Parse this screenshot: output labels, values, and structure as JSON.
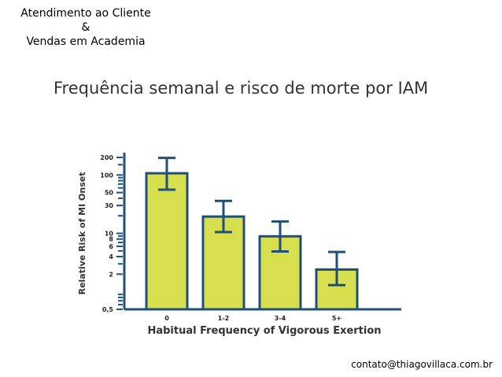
{
  "header": {
    "line1": "Atendimento ao Cliente",
    "line2": "&",
    "line3": "Vendas em Academia"
  },
  "footer": {
    "contact": "contato@thiagovillaca.com.br"
  },
  "colors": {
    "bar_fill": "#d7df4e",
    "bar_stroke": "#1f4f7a",
    "error_bar": "#1f4f7a",
    "axis": "#1f4f7a"
  },
  "chart_data": {
    "type": "bar",
    "title": "Frequência semanal e risco de morte por IAM",
    "xlabel": "Habitual Frequency of Vigorous Exertion",
    "ylabel": "Relative Risk of MI Onset",
    "y_scale": "log",
    "ylim": [
      0.5,
      200
    ],
    "y_tick_labels": [
      {
        "value": 200,
        "label": "200"
      },
      {
        "value": 100,
        "label": "100"
      },
      {
        "value": 50,
        "label": "50"
      },
      {
        "value": 30,
        "label": "30"
      },
      {
        "value": 10,
        "label": "10"
      },
      {
        "value": 8,
        "label": "8"
      },
      {
        "value": 6,
        "label": "6"
      },
      {
        "value": 4,
        "label": "4"
      },
      {
        "value": 2,
        "label": "2"
      },
      {
        "value": 0.5,
        "label": "0,5"
      }
    ],
    "y_minor_ticks": [
      150,
      90,
      80,
      70,
      60,
      40,
      20,
      9,
      7,
      5,
      3,
      0.9,
      0.8,
      0.7,
      0.6
    ],
    "categories": [
      "0",
      "1-2",
      "3-4",
      "5+"
    ],
    "values": [
      107,
      19.4,
      8.9,
      2.4
    ],
    "error_low": [
      56,
      10.5,
      4.9,
      1.3
    ],
    "error_high": [
      196,
      36,
      16,
      4.8
    ]
  }
}
